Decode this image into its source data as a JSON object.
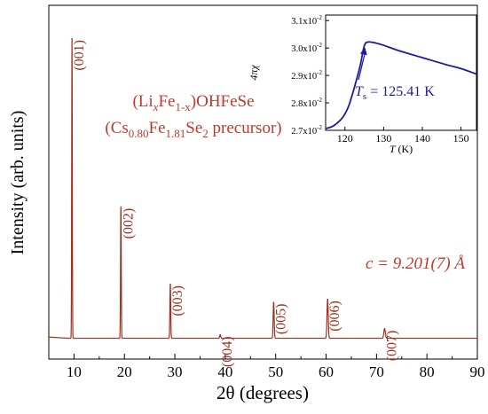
{
  "chart_data": [
    {
      "type": "line",
      "xlabel": "2θ (degrees)",
      "ylabel": "Intensity (arb. units)",
      "xlim": [
        5,
        90
      ],
      "ylim": [
        0,
        1.0
      ],
      "x_ticks": [
        10,
        20,
        30,
        40,
        50,
        60,
        70,
        80,
        90
      ],
      "x_tick_labels": [
        "10",
        "20",
        "30",
        "40",
        "50",
        "60",
        "70",
        "80",
        "90"
      ],
      "y_ticks_shown": false,
      "grid": false,
      "series": [
        {
          "color": "#a0301e",
          "baseline": 0.01,
          "peaks": [
            {
              "x": 9.6,
              "y": 1.0,
              "width": 0.12,
              "label": "(001)"
            },
            {
              "x": 19.3,
              "y": 0.445,
              "width": 0.14,
              "label": "(002)"
            },
            {
              "x": 29.1,
              "y": 0.19,
              "width": 0.16,
              "label": "(003)"
            },
            {
              "x": 39.0,
              "y": 0.022,
              "width": 0.2,
              "label": "(004)"
            },
            {
              "x": 49.6,
              "y": 0.13,
              "width": 0.2,
              "label": "(005)"
            },
            {
              "x": 60.3,
              "y": 0.14,
              "width": 0.24,
              "label": "(006)"
            },
            {
              "x": 71.6,
              "y": 0.042,
              "width": 0.3,
              "label": "(007)"
            }
          ]
        }
      ],
      "annotations": {
        "compound_parts": [
          "(Li",
          "x",
          "Fe",
          "1-x",
          ")OHFeSe"
        ],
        "precursor_parts": [
          "(Cs",
          "0.80",
          "Fe",
          "1.81",
          "Se",
          "2",
          " precursor)"
        ],
        "c_param": "c = 9.201(7) Å",
        "color": "#c0392b"
      }
    },
    {
      "type": "line",
      "inset": true,
      "xlabel": "T (K)",
      "ylabel": "4πχ",
      "xlim": [
        115,
        154
      ],
      "ylim": [
        0.027,
        0.0312
      ],
      "x_ticks": [
        120,
        130,
        140,
        150
      ],
      "x_tick_labels": [
        "120",
        "130",
        "140",
        "150"
      ],
      "y_ticks": [
        0.027,
        0.028,
        0.029,
        0.03,
        0.031
      ],
      "y_tick_labels": [
        "2.7x10",
        "2.8x10",
        "2.9x10",
        "3.0x10",
        "3.1x10"
      ],
      "y_tick_exponent": "-2",
      "series": [
        {
          "color": "#1a1aa6",
          "x": [
            115,
            117,
            119,
            120,
            121,
            122,
            123,
            124,
            125,
            126,
            128,
            130,
            134,
            140,
            146,
            150,
            154
          ],
          "y": [
            0.02706,
            0.02716,
            0.0274,
            0.0276,
            0.0279,
            0.02835,
            0.02885,
            0.0294,
            0.03008,
            0.03022,
            0.03018,
            0.0301,
            0.0299,
            0.02965,
            0.0294,
            0.02925,
            0.02905
          ]
        }
      ],
      "annotation": {
        "label": "T",
        "subscript": "s",
        "value": " = 125.41 K",
        "point_x": 125.41,
        "point_y": 0.03015
      },
      "axis_color": "#000000"
    }
  ]
}
